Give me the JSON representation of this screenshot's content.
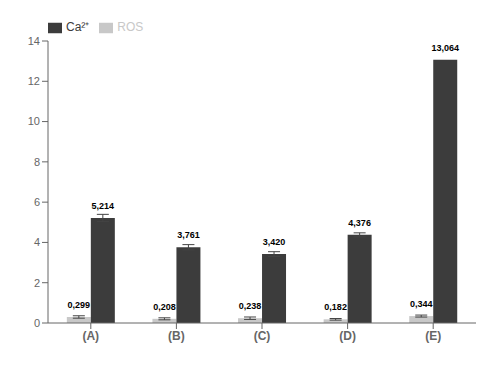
{
  "chart_data": {
    "type": "bar",
    "categories": [
      "(A)",
      "(B)",
      "(C)",
      "(D)",
      "(E)"
    ],
    "series": [
      {
        "name": "ROS",
        "color": "#c8c8c8",
        "values": [
          0.299,
          0.208,
          0.238,
          0.182,
          0.344
        ],
        "errors": [
          0.06,
          0.05,
          0.06,
          0.04,
          0.05
        ],
        "value_labels": [
          "0,299",
          "0,208",
          "0,238",
          "0,182",
          "0,344"
        ]
      },
      {
        "name": "Ca²⁺",
        "color": "#3c3c3c",
        "values": [
          5.214,
          3.761,
          3.42,
          4.376,
          13.064
        ],
        "errors": [
          0.18,
          0.13,
          0.12,
          0.1,
          0.0
        ],
        "value_labels": [
          "5,214",
          "3,761",
          "3,420",
          "4,376",
          "13,064"
        ]
      }
    ],
    "ylim": [
      0,
      14
    ],
    "yticks": [
      0,
      2,
      4,
      6,
      8,
      10,
      12,
      14
    ],
    "data_labels": true,
    "grid": false,
    "legend": "upper left"
  }
}
